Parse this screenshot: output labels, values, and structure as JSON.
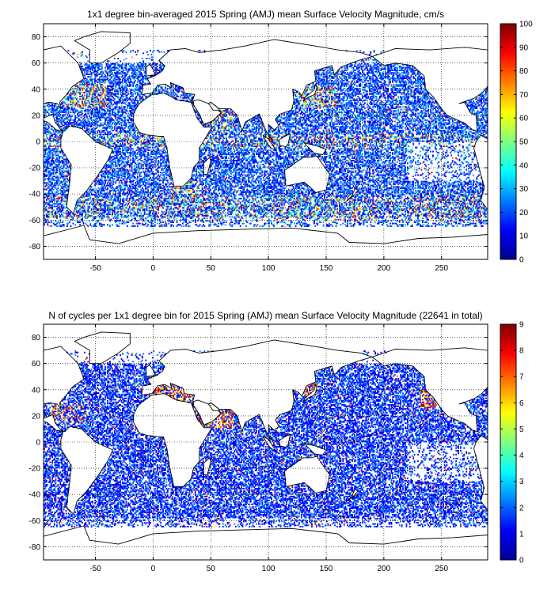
{
  "chart_data": [
    {
      "type": "heatmap",
      "title": "1x1 degree bin-averaged 2015 Spring (AMJ) mean Surface Velocity Magnitude, cm/s",
      "xlabel": "",
      "ylabel": "",
      "xlim": [
        -95,
        290
      ],
      "ylim": [
        -90,
        90
      ],
      "x_ticks": [
        -50,
        0,
        50,
        100,
        150,
        200,
        250
      ],
      "y_ticks": [
        80,
        60,
        40,
        20,
        0,
        -20,
        -40,
        -60,
        -80
      ],
      "grid": true,
      "colorbar": {
        "min": 0,
        "max": 100,
        "ticks": [
          0,
          10,
          20,
          30,
          40,
          50,
          60,
          70,
          80,
          90,
          100
        ],
        "colormap": "jet"
      },
      "values_description": "Dense global ocean coverage of 1x1 degree bins; most values 5-30 cm/s (blue), higher values 40-100 cm/s (green to red) along Gulf Stream, Kuroshio, Agulhas, equatorial currents and Southern Ocean"
    },
    {
      "type": "heatmap",
      "title": "N of cycles per 1x1 degree bin for 2015 Spring (AMJ) mean Surface Velocity Magnitude (22641 in total)",
      "xlabel": "",
      "ylabel": "",
      "xlim": [
        -95,
        290
      ],
      "ylim": [
        -90,
        90
      ],
      "x_ticks": [
        -50,
        0,
        50,
        100,
        150,
        200,
        250
      ],
      "y_ticks": [
        80,
        60,
        40,
        20,
        0,
        -20,
        -40,
        -60,
        -80
      ],
      "grid": true,
      "colorbar": {
        "min": 0,
        "max": 9,
        "ticks": [
          0,
          1,
          2,
          3,
          4,
          5,
          6,
          7,
          8,
          9
        ],
        "colormap": "jet"
      },
      "values_description": "Most bins contain 1-2 cycles (blue); clusters of 7-9 cycles (red) in the Mediterranean, Red Sea/Arabian Sea, Sea of Japan and off California"
    }
  ]
}
